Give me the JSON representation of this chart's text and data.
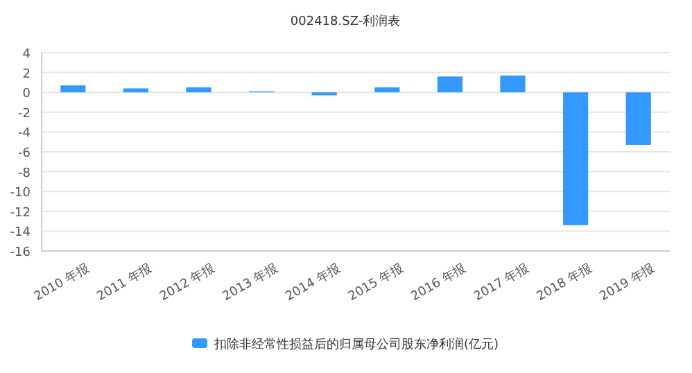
{
  "chart_data": {
    "type": "bar",
    "title": "002418.SZ-利润表",
    "categories": [
      "2010 年报",
      "2011 年报",
      "2012 年报",
      "2013 年报",
      "2014 年报",
      "2015 年报",
      "2016 年报",
      "2017 年报",
      "2018 年报",
      "2019 年报"
    ],
    "series": [
      {
        "name": "扣除非经常性损益后的归属母公司股东净利润(亿元)",
        "color": "#3399ff",
        "values": [
          0.7,
          0.4,
          0.5,
          0.1,
          -0.3,
          0.5,
          1.6,
          1.7,
          -13.4,
          -5.3
        ]
      }
    ],
    "ylim": [
      -16,
      4
    ],
    "yticks": [
      -16,
      -14,
      -12,
      -10,
      -8,
      -6,
      -4,
      -2,
      0,
      2,
      4
    ],
    "grid": "y",
    "legend": "bottom"
  }
}
